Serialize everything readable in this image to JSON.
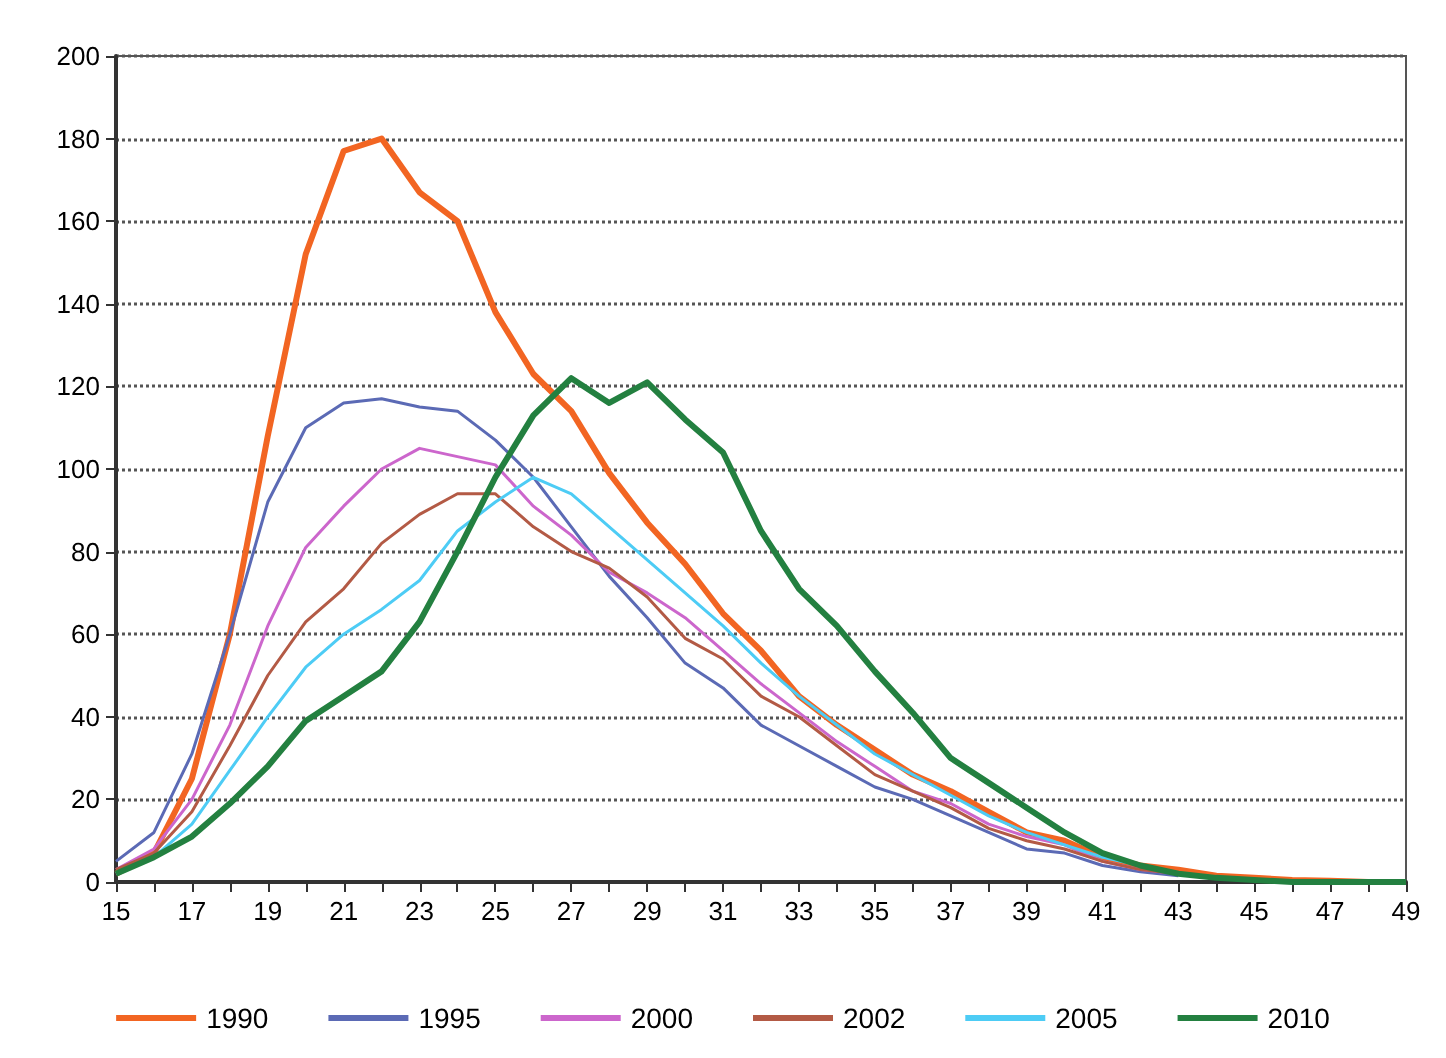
{
  "chart_data": {
    "type": "line",
    "categories": [
      "15",
      null,
      "17",
      null,
      "19",
      null,
      "21",
      null,
      "23",
      null,
      "25",
      null,
      "27",
      null,
      "29",
      null,
      "31",
      null,
      "33",
      null,
      "35",
      null,
      "37",
      null,
      "39",
      null,
      "41",
      null,
      "43",
      null,
      "45",
      null,
      "47",
      null,
      "49"
    ],
    "series": [
      {
        "name": "1990",
        "color": "#f26522",
        "values": [
          2,
          7,
          25,
          60,
          108,
          152,
          177,
          180,
          167,
          160,
          138,
          123,
          114,
          99,
          87,
          77,
          65,
          56,
          45,
          38,
          32,
          26,
          22,
          17,
          12,
          10,
          6,
          4,
          3,
          1.5,
          1,
          0.5,
          0.3,
          0,
          0
        ]
      },
      {
        "name": "1995",
        "color": "#5b6ab5",
        "values": [
          5,
          12,
          31,
          60,
          92,
          110,
          116,
          117,
          115,
          114,
          107,
          98,
          86,
          74,
          64,
          53,
          47,
          38,
          33,
          28,
          23,
          20,
          16,
          12,
          8,
          7,
          4,
          2.5,
          1.5,
          null,
          null,
          null,
          null,
          null,
          null
        ]
      },
      {
        "name": "2000",
        "color": "#cc66cc",
        "values": [
          3,
          8,
          20,
          38,
          62,
          81,
          91,
          100,
          105,
          103,
          101,
          91,
          84,
          75,
          70,
          64,
          56,
          48,
          41,
          34,
          28,
          22,
          19,
          14,
          11,
          9,
          5,
          3,
          2,
          null,
          null,
          null,
          null,
          null,
          null
        ]
      },
      {
        "name": "2002",
        "color": "#b35a45",
        "values": [
          3,
          7,
          17,
          33,
          50,
          63,
          71,
          82,
          89,
          94,
          94,
          86,
          80,
          76,
          69,
          59,
          54,
          45,
          40,
          33,
          26,
          22,
          18,
          13,
          10,
          8,
          5,
          3,
          2,
          null,
          null,
          null,
          null,
          null,
          null
        ]
      },
      {
        "name": "2005",
        "color": "#4dccf5",
        "values": [
          2,
          6,
          14,
          27,
          40,
          52,
          60,
          66,
          73,
          85,
          92,
          98,
          94,
          86,
          78,
          70,
          62,
          53,
          45,
          38,
          31,
          26,
          21,
          16,
          12,
          9,
          6,
          4,
          2,
          null,
          null,
          null,
          null,
          null,
          null
        ]
      },
      {
        "name": "2010",
        "color": "#238040",
        "values": [
          2,
          6,
          11,
          19,
          28,
          39,
          45,
          51,
          63,
          80,
          98,
          113,
          122,
          116,
          121,
          112,
          104,
          85,
          71,
          62,
          51,
          41,
          30,
          24,
          18,
          12,
          7,
          4,
          2,
          1,
          0.5,
          0,
          0,
          0,
          0
        ]
      }
    ],
    "ylim": [
      0,
      200
    ],
    "yticks": [
      0,
      20,
      40,
      60,
      80,
      100,
      120,
      140,
      160,
      180,
      200
    ],
    "grid": "y",
    "legend": "bottom",
    "marker": "none",
    "line_style": "solid"
  }
}
